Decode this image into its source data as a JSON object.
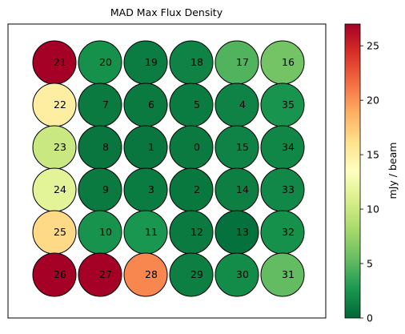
{
  "chart_data": {
    "type": "heatmap",
    "title": "MAD Max Flux Density",
    "colorbar": {
      "label": "mJy / beam",
      "min": 0,
      "max": 27,
      "ticks": [
        0,
        5,
        10,
        15,
        20,
        25
      ],
      "colormap": "RdYlGn_r"
    },
    "grid": {
      "rows": 6,
      "cols": 6
    },
    "cells": [
      {
        "row": 0,
        "col": 0,
        "id": "21",
        "value": 27
      },
      {
        "row": 0,
        "col": 1,
        "id": "20",
        "value": 2.3
      },
      {
        "row": 0,
        "col": 2,
        "id": "19",
        "value": 1.2
      },
      {
        "row": 0,
        "col": 3,
        "id": "18",
        "value": 1.5
      },
      {
        "row": 0,
        "col": 4,
        "id": "17",
        "value": 4.7
      },
      {
        "row": 0,
        "col": 5,
        "id": "16",
        "value": 6.0
      },
      {
        "row": 1,
        "col": 0,
        "id": "22",
        "value": 15.0
      },
      {
        "row": 1,
        "col": 1,
        "id": "7",
        "value": 1.0
      },
      {
        "row": 1,
        "col": 2,
        "id": "6",
        "value": 1.0
      },
      {
        "row": 1,
        "col": 3,
        "id": "5",
        "value": 1.1
      },
      {
        "row": 1,
        "col": 4,
        "id": "4",
        "value": 1.5
      },
      {
        "row": 1,
        "col": 5,
        "id": "35",
        "value": 2.5
      },
      {
        "row": 2,
        "col": 0,
        "id": "23",
        "value": 10.0
      },
      {
        "row": 2,
        "col": 1,
        "id": "8",
        "value": 0.8
      },
      {
        "row": 2,
        "col": 2,
        "id": "1",
        "value": 0.8
      },
      {
        "row": 2,
        "col": 3,
        "id": "0",
        "value": 1.0
      },
      {
        "row": 2,
        "col": 4,
        "id": "15",
        "value": 1.5
      },
      {
        "row": 2,
        "col": 5,
        "id": "34",
        "value": 1.7
      },
      {
        "row": 3,
        "col": 0,
        "id": "24",
        "value": 11.5
      },
      {
        "row": 3,
        "col": 1,
        "id": "9",
        "value": 1.0
      },
      {
        "row": 3,
        "col": 2,
        "id": "3",
        "value": 1.1
      },
      {
        "row": 3,
        "col": 3,
        "id": "2",
        "value": 0.9
      },
      {
        "row": 3,
        "col": 4,
        "id": "14",
        "value": 1.3
      },
      {
        "row": 3,
        "col": 5,
        "id": "33",
        "value": 1.8
      },
      {
        "row": 4,
        "col": 0,
        "id": "25",
        "value": 16.5
      },
      {
        "row": 4,
        "col": 1,
        "id": "10",
        "value": 2.4
      },
      {
        "row": 4,
        "col": 2,
        "id": "11",
        "value": 2.6
      },
      {
        "row": 4,
        "col": 3,
        "id": "12",
        "value": 1.0
      },
      {
        "row": 4,
        "col": 4,
        "id": "13",
        "value": 0.5
      },
      {
        "row": 4,
        "col": 5,
        "id": "32",
        "value": 2.3
      },
      {
        "row": 5,
        "col": 0,
        "id": "26",
        "value": 27
      },
      {
        "row": 5,
        "col": 1,
        "id": "27",
        "value": 27
      },
      {
        "row": 5,
        "col": 2,
        "id": "28",
        "value": 20.5
      },
      {
        "row": 5,
        "col": 3,
        "id": "29",
        "value": 1.3
      },
      {
        "row": 5,
        "col": 4,
        "id": "30",
        "value": 2.0
      },
      {
        "row": 5,
        "col": 5,
        "id": "31",
        "value": 5.3
      }
    ]
  }
}
